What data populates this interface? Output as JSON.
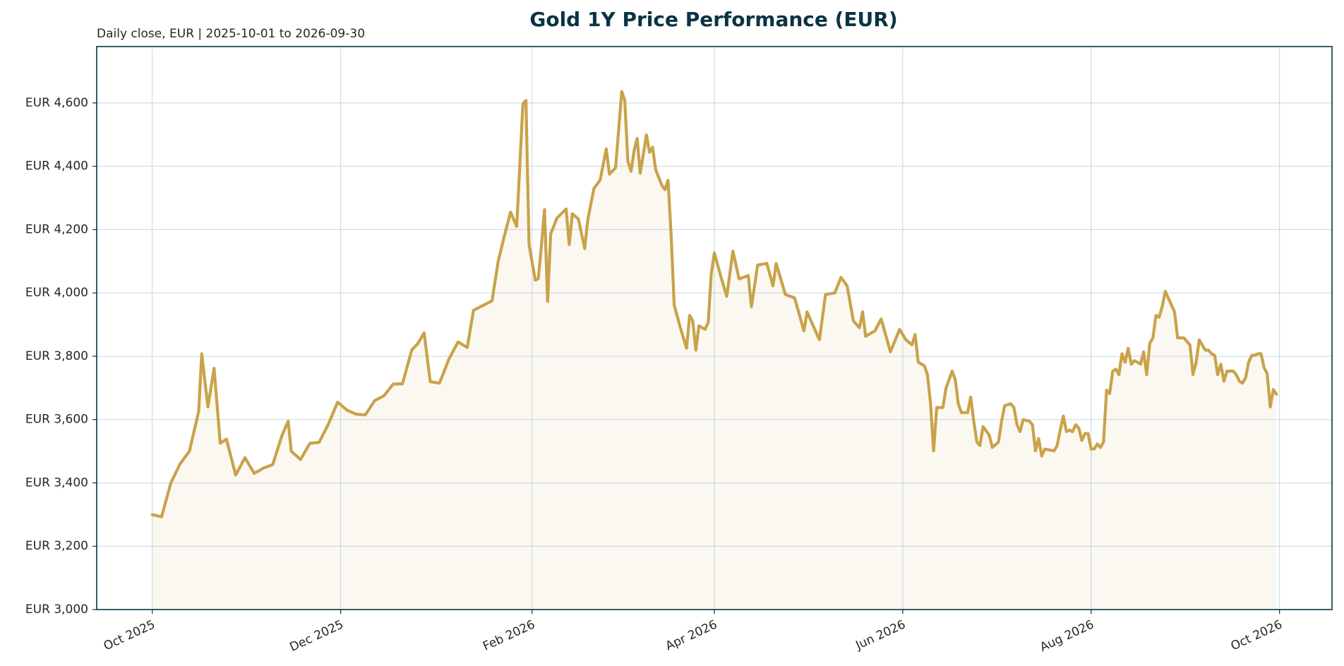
{
  "chart_data": {
    "type": "line",
    "title": "Gold 1Y Price Performance (EUR)",
    "subtitle": "Daily close, EUR | 2025-10-01 to 2026-09-30",
    "color": "#c9a24a",
    "area": true,
    "grid": true,
    "xlim": [
      "2025-09-13",
      "2026-10-18"
    ],
    "xticks": [
      {
        "value": "2025-10-01",
        "label": "Oct 2025"
      },
      {
        "value": "2025-12-01",
        "label": "Dec 2025"
      },
      {
        "value": "2026-02-01",
        "label": "Feb 2026"
      },
      {
        "value": "2026-04-01",
        "label": "Apr 2026"
      },
      {
        "value": "2026-06-01",
        "label": "Jun 2026"
      },
      {
        "value": "2026-08-01",
        "label": "Aug 2026"
      },
      {
        "value": "2026-10-01",
        "label": "Oct 2026"
      }
    ],
    "ylim": [
      3000,
      4778
    ],
    "yticks": [
      {
        "value": 3000,
        "label": "EUR 3,000"
      },
      {
        "value": 3200,
        "label": "EUR 3,200"
      },
      {
        "value": 3400,
        "label": "EUR 3,400"
      },
      {
        "value": 3600,
        "label": "EUR 3,600"
      },
      {
        "value": 3800,
        "label": "EUR 3,800"
      },
      {
        "value": 4000,
        "label": "EUR 4,000"
      },
      {
        "value": 4200,
        "label": "EUR 4,200"
      },
      {
        "value": 4400,
        "label": "EUR 4,400"
      },
      {
        "value": 4600,
        "label": "EUR 4,600"
      }
    ],
    "x": [
      "2025-10-01",
      "2025-10-04",
      "2025-10-07",
      "2025-10-10",
      "2025-10-13",
      "2025-10-16",
      "2025-10-17",
      "2025-10-19",
      "2025-10-21",
      "2025-10-23",
      "2025-10-25",
      "2025-10-28",
      "2025-10-31",
      "2025-11-03",
      "2025-11-06",
      "2025-11-09",
      "2025-11-12",
      "2025-11-14",
      "2025-11-15",
      "2025-11-18",
      "2025-11-21",
      "2025-11-24",
      "2025-11-27",
      "2025-11-30",
      "2025-12-03",
      "2025-12-06",
      "2025-12-09",
      "2025-12-12",
      "2025-12-15",
      "2025-12-18",
      "2025-12-21",
      "2025-12-24",
      "2025-12-26",
      "2025-12-28",
      "2025-12-30",
      "2026-01-02",
      "2026-01-05",
      "2026-01-08",
      "2026-01-11",
      "2026-01-13",
      "2026-01-16",
      "2026-01-19",
      "2026-01-21",
      "2026-01-23",
      "2026-01-25",
      "2026-01-27",
      "2026-01-29",
      "2026-01-30",
      "2026-01-31",
      "2026-02-02",
      "2026-02-03",
      "2026-02-04",
      "2026-02-05",
      "2026-02-06",
      "2026-02-07",
      "2026-02-09",
      "2026-02-12",
      "2026-02-13",
      "2026-02-14",
      "2026-02-16",
      "2026-02-18",
      "2026-02-19",
      "2026-02-21",
      "2026-02-23",
      "2026-02-25",
      "2026-02-26",
      "2026-02-28",
      "2026-03-02",
      "2026-03-03",
      "2026-03-04",
      "2026-03-05",
      "2026-03-06",
      "2026-03-07",
      "2026-03-08",
      "2026-03-10",
      "2026-03-11",
      "2026-03-12",
      "2026-03-13",
      "2026-03-15",
      "2026-03-16",
      "2026-03-17",
      "2026-03-18",
      "2026-03-19",
      "2026-03-21",
      "2026-03-23",
      "2026-03-24",
      "2026-03-25",
      "2026-03-26",
      "2026-03-27",
      "2026-03-29",
      "2026-03-30",
      "2026-03-31",
      "2026-04-01",
      "2026-04-03",
      "2026-04-05",
      "2026-04-07",
      "2026-04-09",
      "2026-04-12",
      "2026-04-13",
      "2026-04-15",
      "2026-04-18",
      "2026-04-20",
      "2026-04-21",
      "2026-04-24",
      "2026-04-27",
      "2026-04-30",
      "2026-05-01",
      "2026-05-05",
      "2026-05-07",
      "2026-05-10",
      "2026-05-12",
      "2026-05-14",
      "2026-05-16",
      "2026-05-18",
      "2026-05-19",
      "2026-05-20",
      "2026-05-23",
      "2026-05-25",
      "2026-05-28",
      "2026-05-31",
      "2026-06-02",
      "2026-06-04",
      "2026-06-05",
      "2026-06-06",
      "2026-06-08",
      "2026-06-09",
      "2026-06-10",
      "2026-06-11",
      "2026-06-12",
      "2026-06-14",
      "2026-06-15",
      "2026-06-17",
      "2026-06-18",
      "2026-06-19",
      "2026-06-20",
      "2026-06-22",
      "2026-06-23",
      "2026-06-24",
      "2026-06-25",
      "2026-06-26",
      "2026-06-27",
      "2026-06-29",
      "2026-06-30",
      "2026-07-02",
      "2026-07-03",
      "2026-07-04",
      "2026-07-06",
      "2026-07-07",
      "2026-07-08",
      "2026-07-09",
      "2026-07-10",
      "2026-07-12",
      "2026-07-13",
      "2026-07-14",
      "2026-07-15",
      "2026-07-16",
      "2026-07-17",
      "2026-07-20",
      "2026-07-21",
      "2026-07-22",
      "2026-07-23",
      "2026-07-24",
      "2026-07-25",
      "2026-07-26",
      "2026-07-27",
      "2026-07-28",
      "2026-07-29",
      "2026-07-30",
      "2026-07-31",
      "2026-08-01",
      "2026-08-02",
      "2026-08-03",
      "2026-08-04",
      "2026-08-05",
      "2026-08-06",
      "2026-08-07",
      "2026-08-08",
      "2026-08-09",
      "2026-08-10",
      "2026-08-11",
      "2026-08-12",
      "2026-08-13",
      "2026-08-14",
      "2026-08-15",
      "2026-08-16",
      "2026-08-17",
      "2026-08-18",
      "2026-08-19",
      "2026-08-20",
      "2026-08-21",
      "2026-08-22",
      "2026-08-23",
      "2026-08-24",
      "2026-08-25",
      "2026-08-26",
      "2026-08-27",
      "2026-08-28",
      "2026-08-29",
      "2026-08-31",
      "2026-09-01",
      "2026-09-02",
      "2026-09-03",
      "2026-09-04",
      "2026-09-05",
      "2026-09-07",
      "2026-09-08",
      "2026-09-09",
      "2026-09-10",
      "2026-09-11",
      "2026-09-12",
      "2026-09-13",
      "2026-09-14",
      "2026-09-16",
      "2026-09-17",
      "2026-09-18",
      "2026-09-19",
      "2026-09-20",
      "2026-09-21",
      "2026-09-22",
      "2026-09-23",
      "2026-09-24",
      "2026-09-25",
      "2026-09-26",
      "2026-09-27",
      "2026-09-28",
      "2026-09-29",
      "2026-09-30"
    ],
    "values": [
      3300,
      3293,
      3400,
      3460,
      3500,
      3625,
      3808,
      3640,
      3762,
      3525,
      3538,
      3425,
      3480,
      3430,
      3447,
      3458,
      3550,
      3595,
      3500,
      3474,
      3525,
      3528,
      3585,
      3655,
      3630,
      3617,
      3615,
      3660,
      3675,
      3712,
      3713,
      3820,
      3840,
      3874,
      3720,
      3715,
      3790,
      3845,
      3828,
      3945,
      3960,
      3975,
      4100,
      4180,
      4255,
      4210,
      4597,
      4608,
      4153,
      4040,
      4045,
      4150,
      4263,
      3973,
      4186,
      4236,
      4265,
      4153,
      4250,
      4233,
      4140,
      4230,
      4330,
      4356,
      4455,
      4375,
      4395,
      4636,
      4608,
      4416,
      4384,
      4449,
      4488,
      4378,
      4499,
      4444,
      4460,
      4389,
      4340,
      4326,
      4356,
      4181,
      3962,
      3890,
      3825,
      3929,
      3912,
      3819,
      3896,
      3885,
      3907,
      4060,
      4126,
      4055,
      3989,
      4132,
      4044,
      4055,
      3956,
      4088,
      4093,
      4022,
      4093,
      3995,
      3984,
      3880,
      3940,
      3852,
      3995,
      4000,
      4049,
      4022,
      3912,
      3890,
      3940,
      3863,
      3880,
      3918,
      3814,
      3885,
      3852,
      3836,
      3869,
      3781,
      3770,
      3742,
      3650,
      3501,
      3638,
      3638,
      3699,
      3753,
      3726,
      3650,
      3622,
      3622,
      3671,
      3595,
      3529,
      3518,
      3578,
      3551,
      3512,
      3529,
      3595,
      3644,
      3650,
      3638,
      3584,
      3562,
      3600,
      3595,
      3584,
      3501,
      3540,
      3485,
      3507,
      3501,
      3518,
      3567,
      3611,
      3562,
      3567,
      3562,
      3584,
      3573,
      3534,
      3556,
      3556,
      3507,
      3507,
      3523,
      3512,
      3529,
      3693,
      3682,
      3753,
      3759,
      3742,
      3808,
      3781,
      3825,
      3775,
      3786,
      3781,
      3775,
      3814,
      3742,
      3841,
      3858,
      3929,
      3923,
      3956,
      4005,
      3984,
      3962,
      3940,
      3858,
      3858,
      3847,
      3836,
      3742,
      3781,
      3852,
      3819,
      3819,
      3808,
      3803,
      3742,
      3775,
      3721,
      3753,
      3753,
      3742,
      3721,
      3715,
      3731,
      3781,
      3803,
      3803,
      3808,
      3808,
      3764,
      3745,
      3640,
      3695,
      3680
    ]
  }
}
